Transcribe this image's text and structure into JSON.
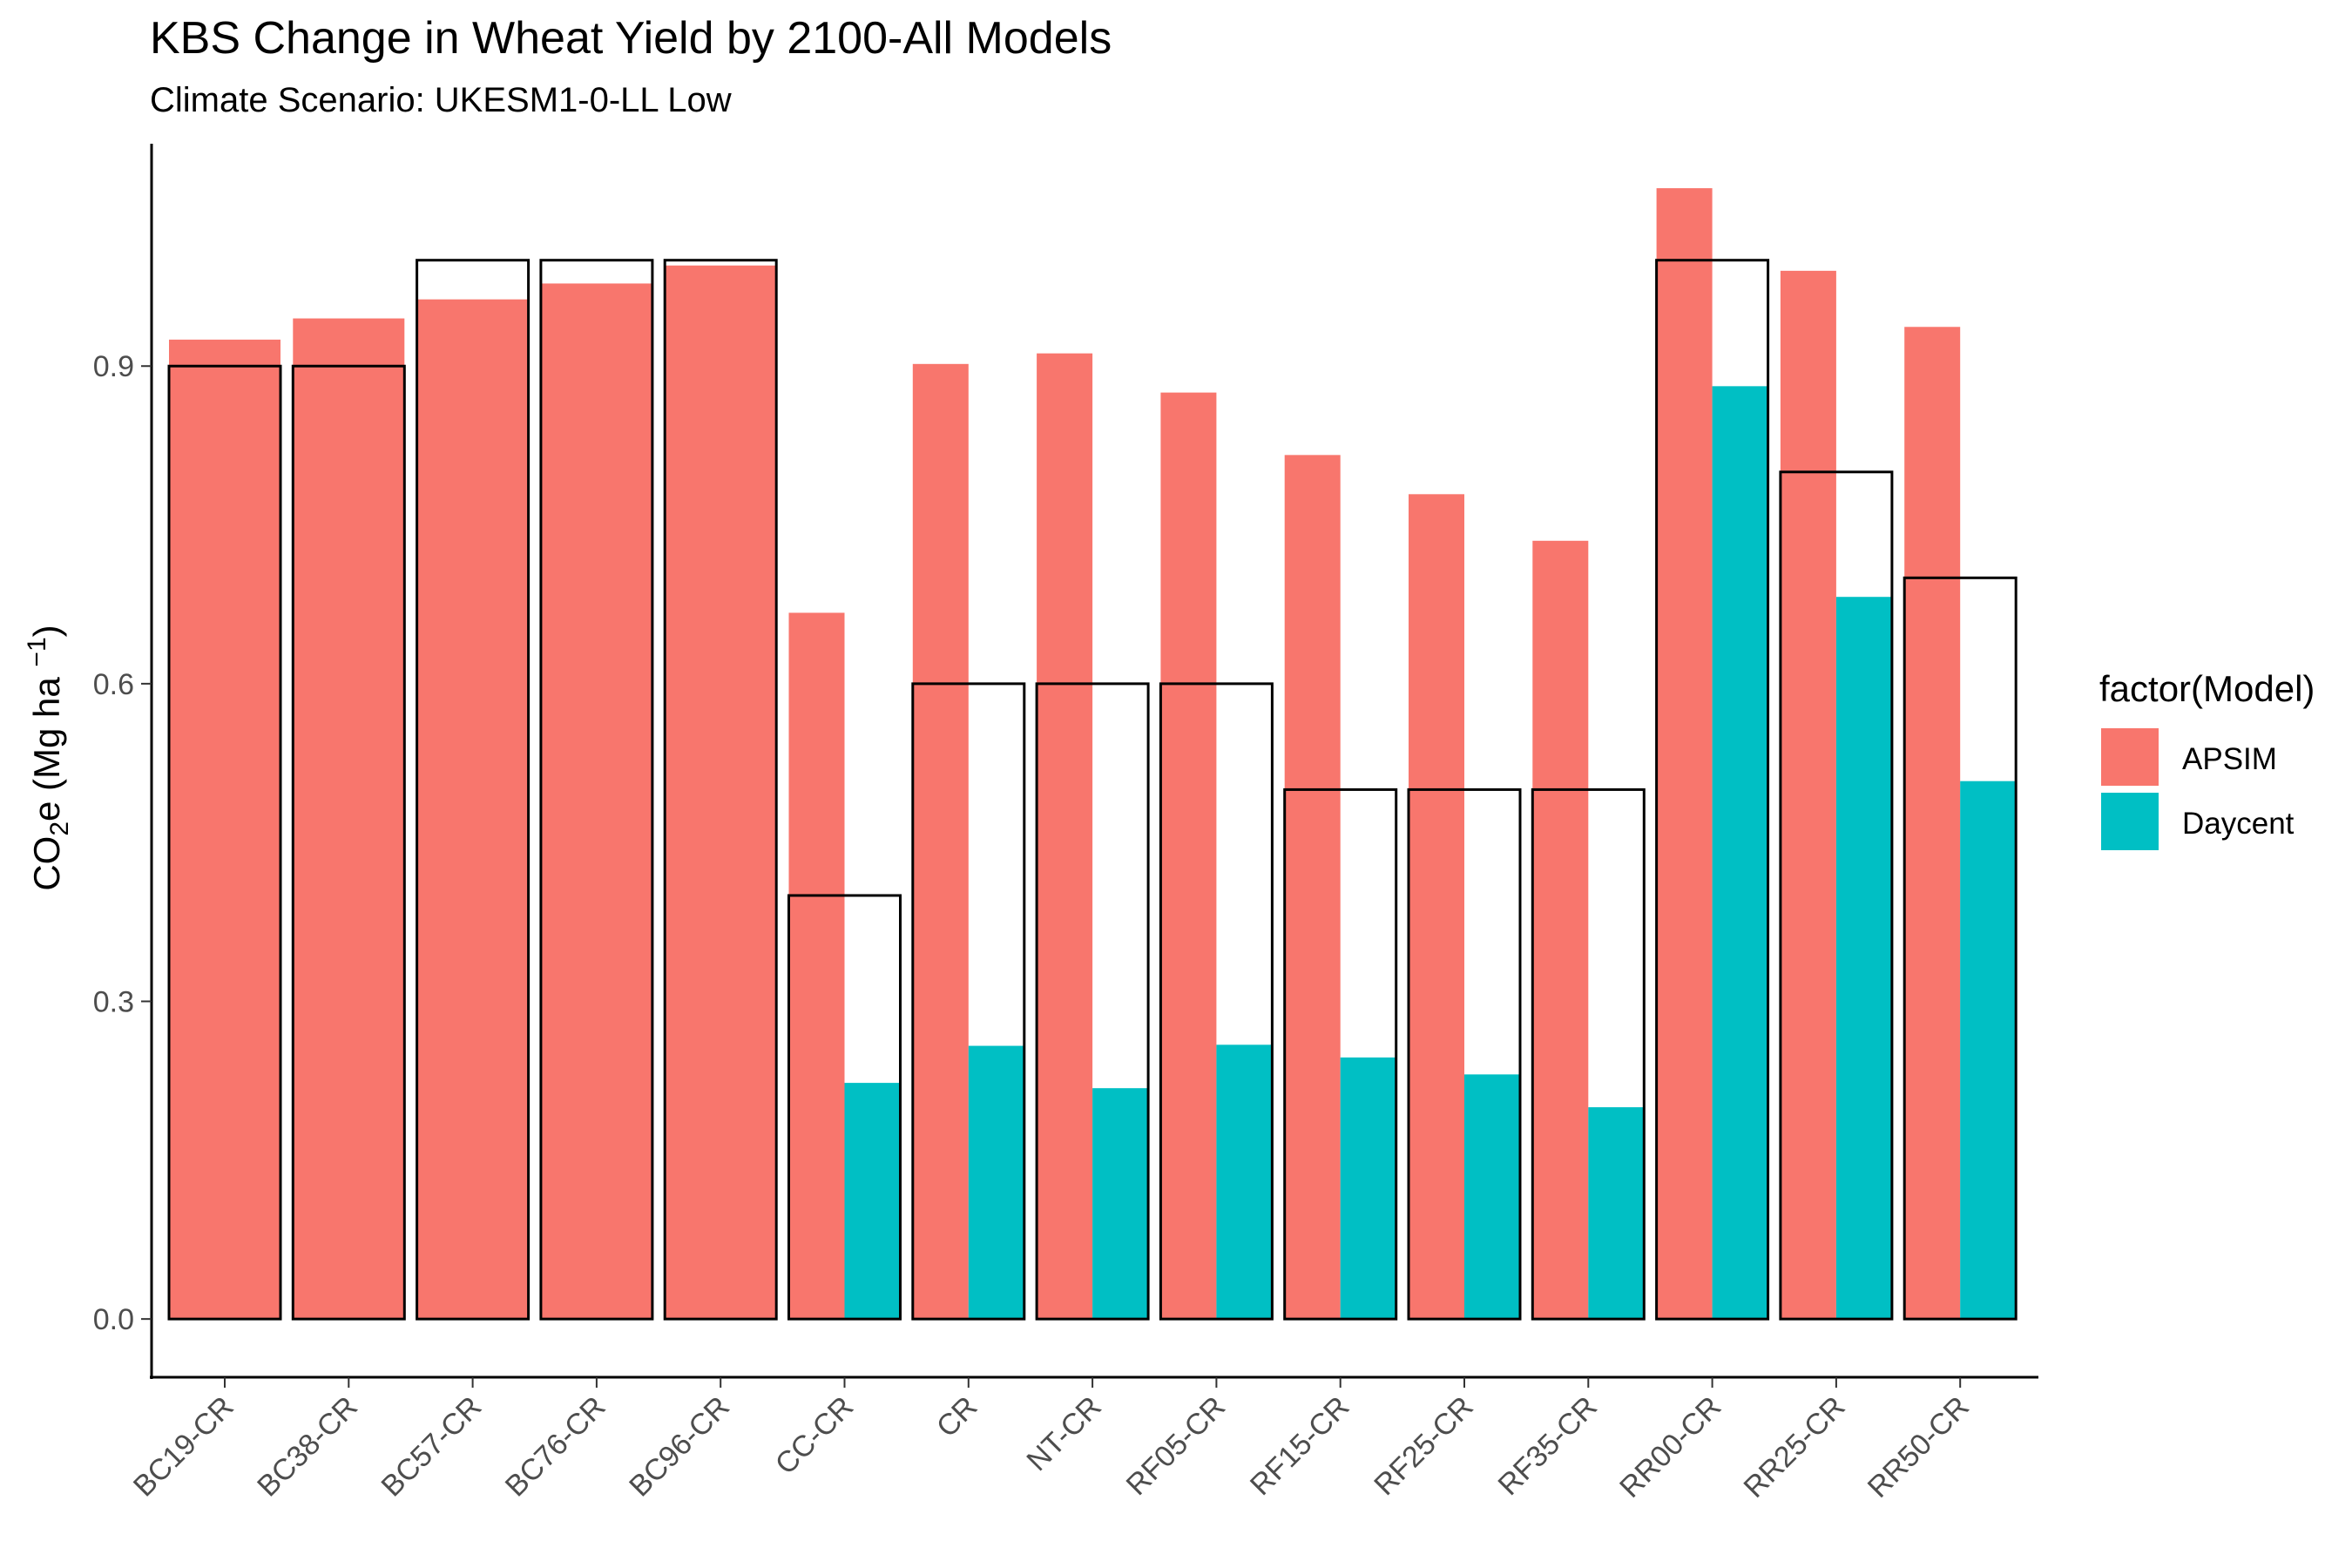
{
  "chart_data": {
    "type": "bar",
    "title": "KBS Change in Wheat Yield by 2100-All Models",
    "subtitle": "Climate Scenario: UKESM1-0-LL Low",
    "xlabel": "",
    "ylabel": "CO2e (Mg ha -1)",
    "ylabel_parts": {
      "main": "CO",
      "sub": "2",
      "after_sub": "e (Mg ha ",
      "sup": "−1",
      "close": ")"
    },
    "ylim": [
      -0.055,
      1.11
    ],
    "yticks": [
      0.0,
      0.3,
      0.6,
      0.9
    ],
    "ytick_labels": [
      "0.0",
      "0.3",
      "0.6",
      "0.9"
    ],
    "grid": false,
    "legend": {
      "title": "factor(Model)",
      "position": "right",
      "entries": [
        "APSIM",
        "Daycent"
      ]
    },
    "colors": {
      "APSIM": "#F8766D",
      "Daycent": "#00BFC4",
      "outline": "#000000"
    },
    "categories": [
      "BC19-CR",
      "BC38-CR",
      "BC57-CR",
      "BC76-CR",
      "BC96-CR",
      "CC-CR",
      "CR",
      "NT-CR",
      "RF05-CR",
      "RF15-CR",
      "RF25-CR",
      "RF35-CR",
      "RR00-CR",
      "RR25-CR",
      "RR50-CR"
    ],
    "series": [
      {
        "name": "APSIM",
        "values": [
          0.925,
          0.945,
          0.963,
          0.978,
          0.995,
          0.667,
          0.902,
          0.912,
          0.875,
          0.816,
          0.779,
          0.735,
          1.068,
          0.99,
          0.937
        ]
      },
      {
        "name": "Daycent",
        "values": [
          null,
          null,
          null,
          null,
          null,
          0.223,
          0.258,
          0.218,
          0.259,
          0.247,
          0.231,
          0.2,
          0.881,
          0.682,
          0.508
        ]
      }
    ],
    "outline_values": [
      0.9,
      0.9,
      1.0,
      1.0,
      1.0,
      0.4,
      0.6,
      0.6,
      0.6,
      0.5,
      0.5,
      0.5,
      1.0,
      0.8,
      0.7
    ]
  }
}
